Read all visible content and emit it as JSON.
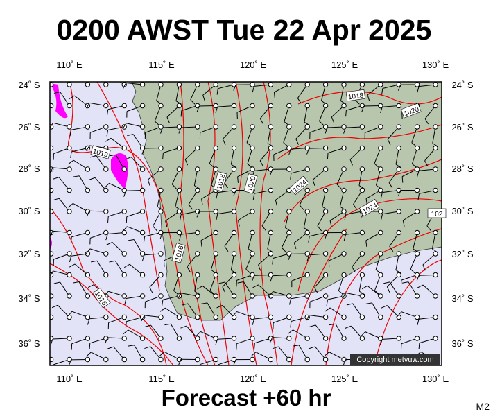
{
  "title": "0200 AWST Tue 22 Apr 2025",
  "footer": "Forecast +60 hr",
  "model": "M2",
  "copyright": "Copyright metvuw.com",
  "map": {
    "lon_labels": [
      "110˚ E",
      "115˚ E",
      "120˚ E",
      "125˚ E",
      "130˚ E"
    ],
    "lat_labels": [
      "24˚ S",
      "26˚ S",
      "28˚ S",
      "30˚ S",
      "32˚ S",
      "34˚ S",
      "36˚ S"
    ],
    "isobar_labels": [
      "1018",
      "1020",
      "1019",
      "1018",
      "1020",
      "1024",
      "1024",
      "1016",
      "1016",
      "102"
    ]
  }
}
